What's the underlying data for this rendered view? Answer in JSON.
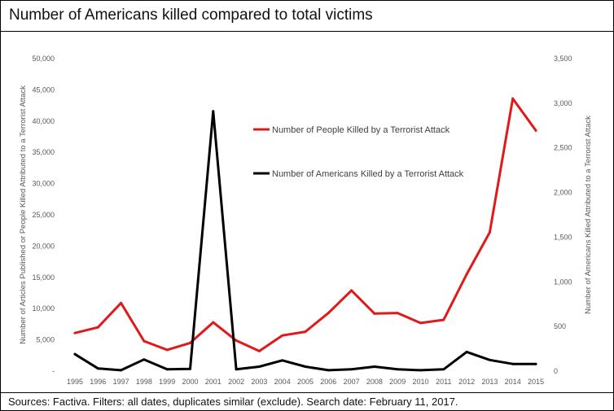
{
  "header": {
    "title": "Number of Americans killed compared to total victims"
  },
  "footer": {
    "source": "Sources: Factiva. Filters: all dates, duplicates similar (exclude). Search date: February 11, 2017."
  },
  "chart_data": {
    "type": "line",
    "categories": [
      "1995",
      "1996",
      "1997",
      "1998",
      "1999",
      "2000",
      "2001",
      "2002",
      "2003",
      "2004",
      "2005",
      "2006",
      "2007",
      "2008",
      "2009",
      "2010",
      "2011",
      "2012",
      "2013",
      "2014",
      "2015"
    ],
    "y_left": {
      "label": "Number of Articles Published or People Killed Attributed to a Terrorist Attack",
      "range": [
        0,
        50000
      ],
      "ticks": [
        "-",
        "5,000",
        "10,000",
        "15,000",
        "20,000",
        "25,000",
        "30,000",
        "35,000",
        "40,000",
        "45,000",
        "50,000"
      ]
    },
    "y_right": {
      "label": "Number of Americans Killed Attributed to a Terrorist Attack",
      "range": [
        0,
        3500
      ],
      "ticks": [
        "0",
        "500",
        "1,000",
        "1,500",
        "2,000",
        "2,500",
        "3,000",
        "3,500"
      ]
    },
    "series": [
      {
        "name": "Number of People Killed by a Terrorist Attack",
        "axis": "left",
        "color": "#e0191b",
        "values": [
          6100,
          7000,
          10900,
          4800,
          3400,
          4500,
          7800,
          4900,
          3200,
          5700,
          6300,
          9300,
          12900,
          9200,
          9300,
          7700,
          8200,
          15500,
          22200,
          43600,
          38500
        ]
      },
      {
        "name": "Number of Americans Killed by a Terrorist Attack",
        "axis": "right",
        "color": "#000000",
        "values": [
          190,
          30,
          10,
          130,
          20,
          25,
          2910,
          20,
          50,
          120,
          50,
          10,
          20,
          50,
          20,
          10,
          20,
          215,
          125,
          80,
          80
        ]
      }
    ],
    "grid": false,
    "legend_position": "upper-right"
  }
}
